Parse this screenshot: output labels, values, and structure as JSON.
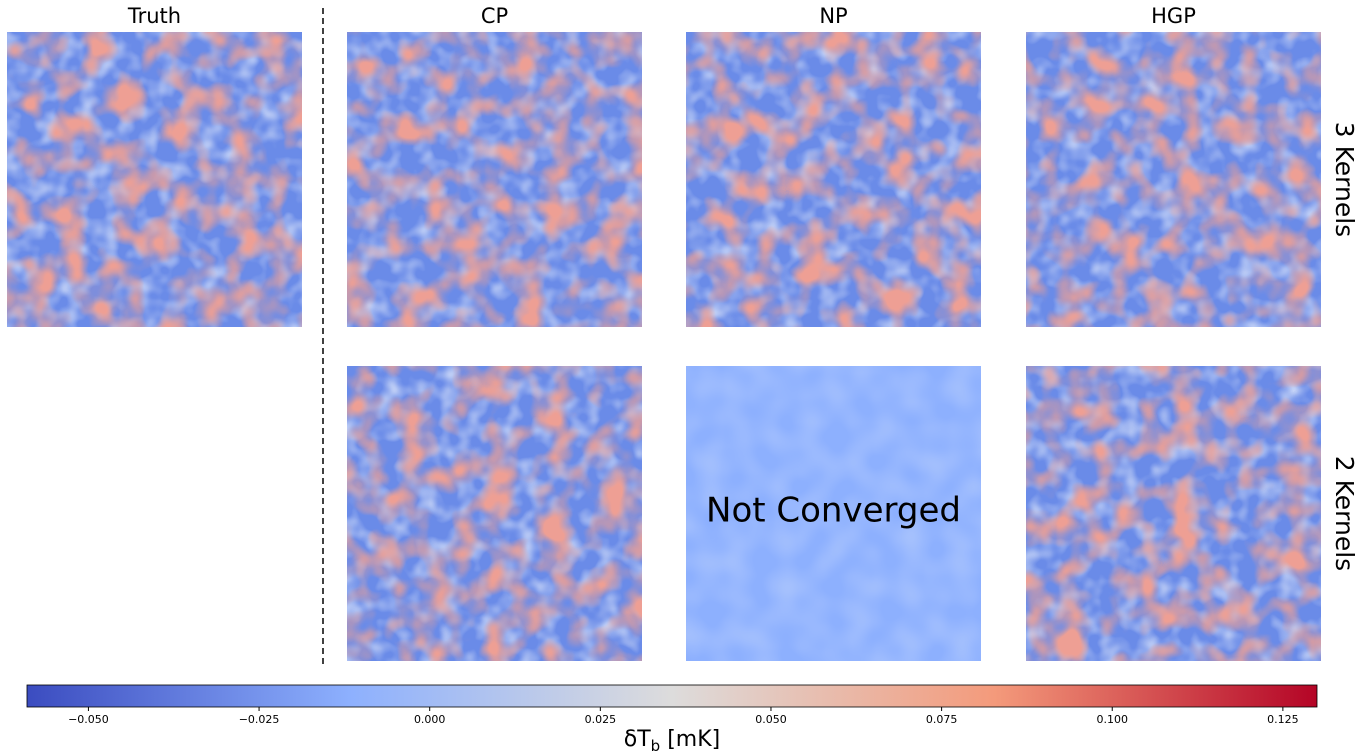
{
  "chart_data": {
    "type": "heatmap-grid",
    "columns": [
      "Truth",
      "CP",
      "NP",
      "HGP"
    ],
    "rows": [
      "3 Kernels",
      "2 Kernels"
    ],
    "annotation": "Not Converged",
    "colorbar": {
      "label": [
        "δT",
        "b",
        " [mK]"
      ],
      "lim": [
        -0.059,
        0.13
      ],
      "colors": [
        "#3b4cc0",
        "#8db0fe",
        "#dddcdc",
        "#f49a7b",
        "#b40426"
      ],
      "ticks": [
        {
          "value": -0.05,
          "label": "−0.050"
        },
        {
          "value": -0.025,
          "label": "−0.025"
        },
        {
          "value": 0,
          "label": "0.000"
        },
        {
          "value": 0.025,
          "label": "0.025"
        },
        {
          "value": 0.05,
          "label": "0.050"
        },
        {
          "value": 0.075,
          "label": "0.075"
        },
        {
          "value": 0.1,
          "label": "0.100"
        },
        {
          "value": 0.125,
          "label": "0.125"
        }
      ]
    }
  }
}
